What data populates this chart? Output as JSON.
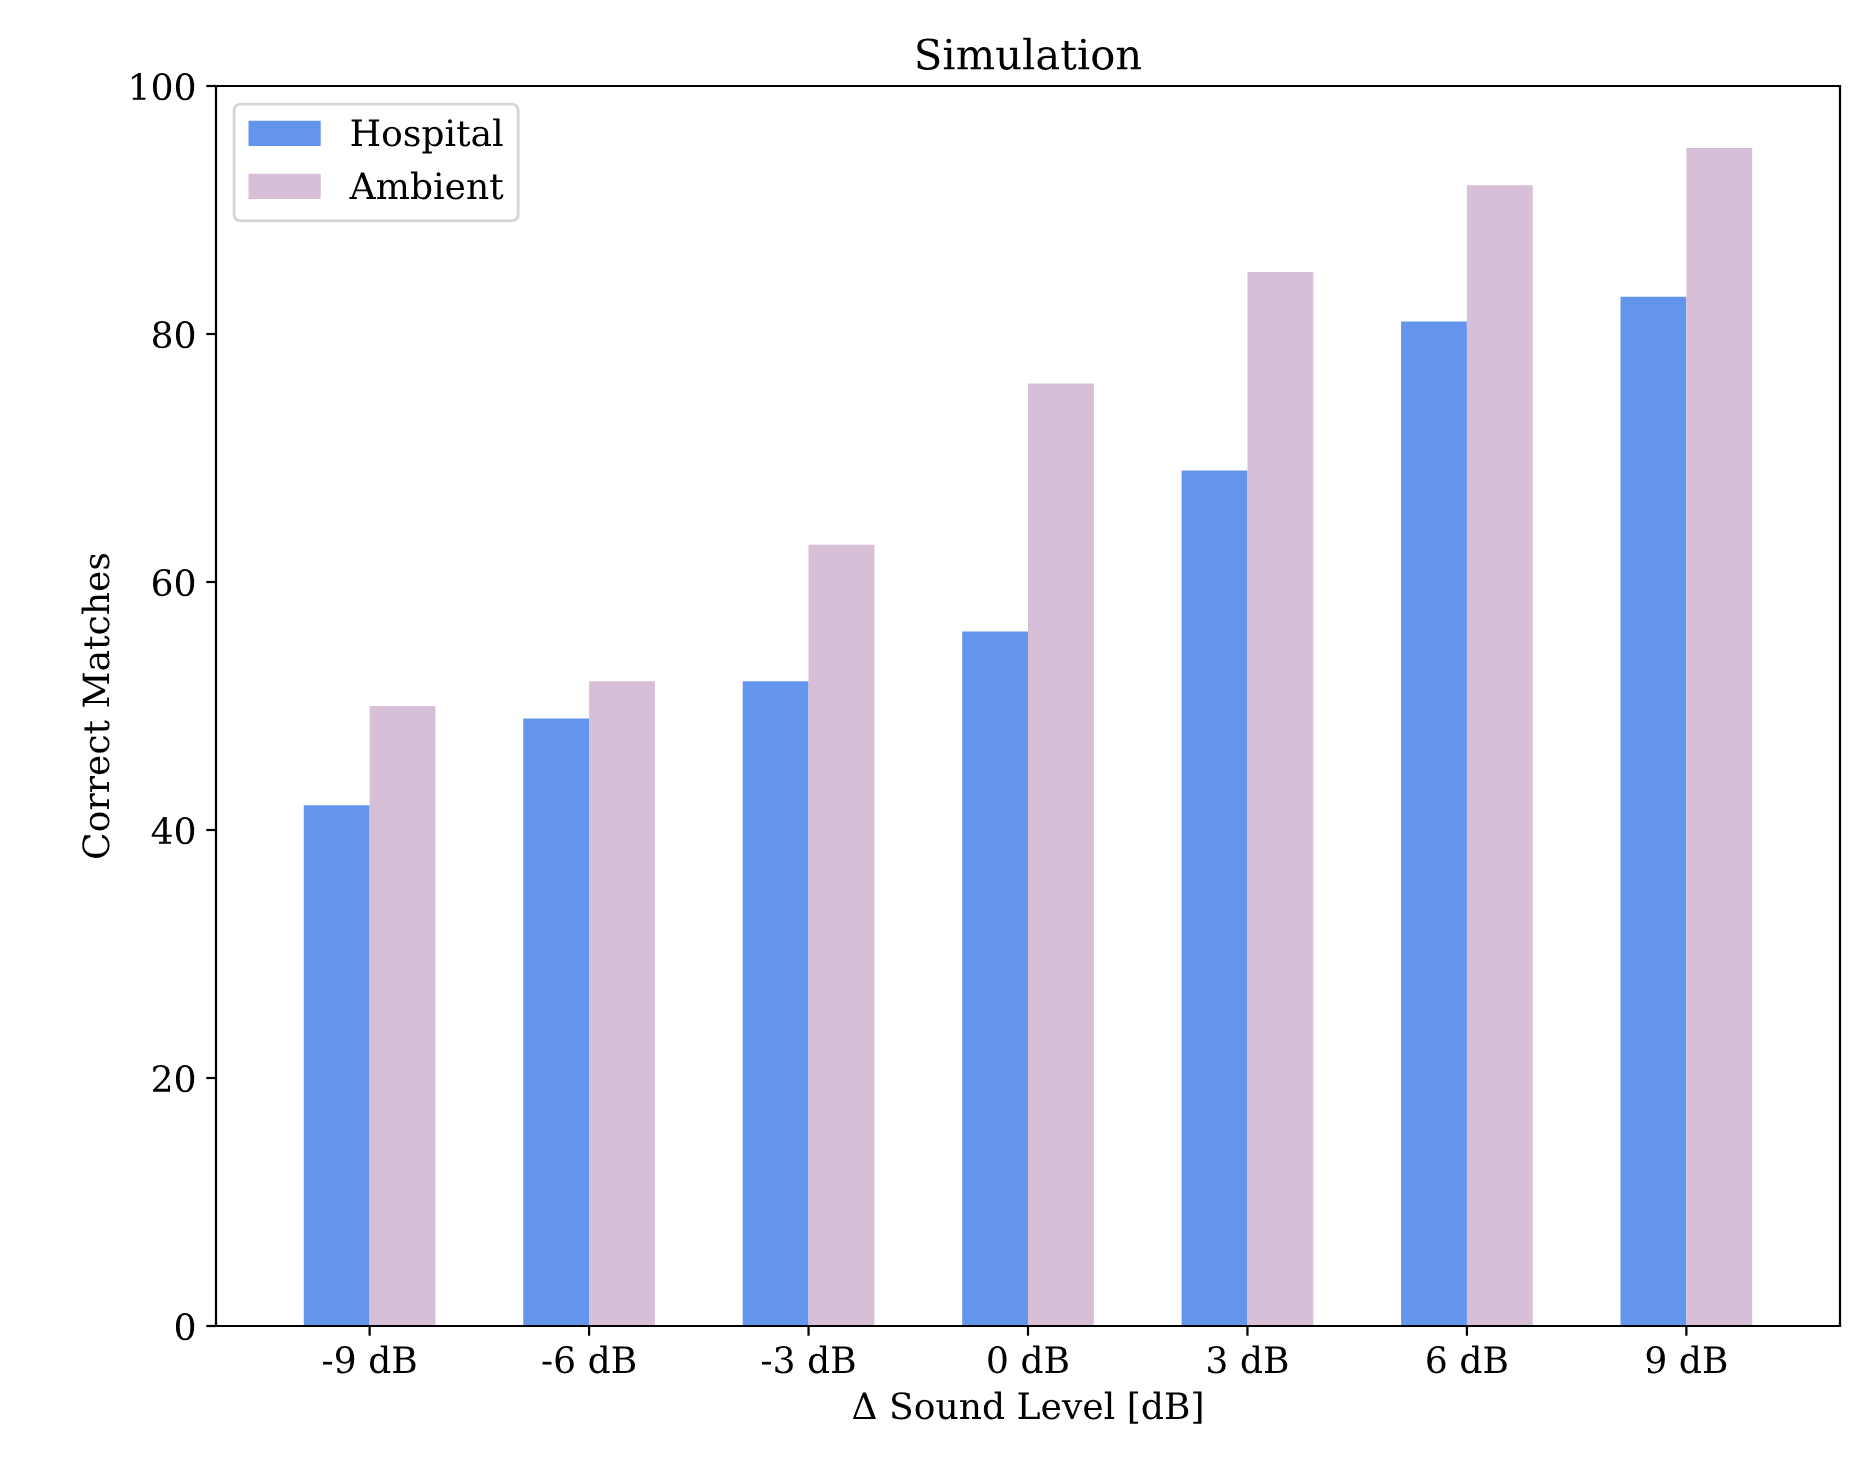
{
  "chart_data": {
    "type": "bar",
    "title": "Simulation",
    "xlabel": "Δ Sound Level [dB]",
    "ylabel": "Correct Matches",
    "categories": [
      "-9 dB",
      "-6 dB",
      "-3 dB",
      "0 dB",
      "3 dB",
      "6 dB",
      "9 dB"
    ],
    "series": [
      {
        "name": "Hospital",
        "color": "#6495ed",
        "values": [
          42,
          49,
          52,
          56,
          69,
          81,
          83
        ]
      },
      {
        "name": "Ambient",
        "color": "#d8bfd8",
        "values": [
          50,
          52,
          63,
          76,
          85,
          92,
          95
        ]
      }
    ],
    "ylim": [
      0,
      100
    ],
    "yticks": [
      0,
      20,
      40,
      60,
      80,
      100
    ],
    "grid": false,
    "legend": "top left"
  }
}
